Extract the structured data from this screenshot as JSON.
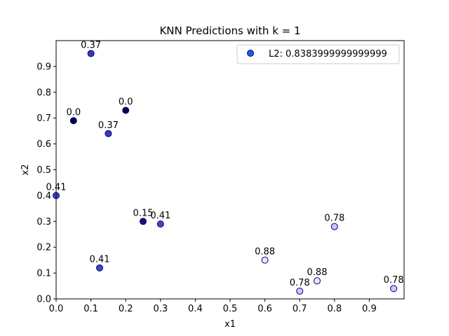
{
  "chart_data": {
    "type": "scatter",
    "title": "KNN Predictions with k = 1",
    "xlabel": "x1",
    "ylabel": "x2",
    "xlim": [
      0.0,
      1.0
    ],
    "ylim": [
      0.0,
      1.0
    ],
    "xticks": [
      "0.0",
      "0.1",
      "0.2",
      "0.3",
      "0.4",
      "0.5",
      "0.6",
      "0.7",
      "0.8",
      "0.9"
    ],
    "yticks": [
      "0.0",
      "0.1",
      "0.2",
      "0.3",
      "0.4",
      "0.5",
      "0.6",
      "0.7",
      "0.8",
      "0.9"
    ],
    "grid": false,
    "legend": {
      "placement": "top-right",
      "label": "L2: 0.8383999999999999",
      "marker_color": "#1f5fe0"
    },
    "edge_color": "#00008b",
    "series": [
      {
        "name": "L2: 0.8383999999999999",
        "points": [
          {
            "x": 0.1,
            "y": 0.95,
            "label": "0.37",
            "color": "#3c3caa"
          },
          {
            "x": 0.05,
            "y": 0.69,
            "label": "0.0",
            "color": "#00003c"
          },
          {
            "x": 0.2,
            "y": 0.73,
            "label": "0.0",
            "color": "#00003c"
          },
          {
            "x": 0.15,
            "y": 0.64,
            "label": "0.37",
            "color": "#3c3caa"
          },
          {
            "x": 0.0,
            "y": 0.4,
            "label": "0.41",
            "color": "#4646b4"
          },
          {
            "x": 0.25,
            "y": 0.3,
            "label": "0.15",
            "color": "#14146e"
          },
          {
            "x": 0.3,
            "y": 0.29,
            "label": "0.41",
            "color": "#4646b4"
          },
          {
            "x": 0.125,
            "y": 0.12,
            "label": "0.41",
            "color": "#4646b4"
          },
          {
            "x": 0.6,
            "y": 0.15,
            "label": "0.88",
            "color": "#e6e6ff"
          },
          {
            "x": 0.8,
            "y": 0.28,
            "label": "0.78",
            "color": "#c8c8fa"
          },
          {
            "x": 0.75,
            "y": 0.07,
            "label": "0.88",
            "color": "#e6e6ff"
          },
          {
            "x": 0.7,
            "y": 0.03,
            "label": "0.78",
            "color": "#c8c8fa"
          },
          {
            "x": 0.97,
            "y": 0.04,
            "label": "0.78",
            "color": "#c8c8fa"
          }
        ]
      }
    ]
  }
}
